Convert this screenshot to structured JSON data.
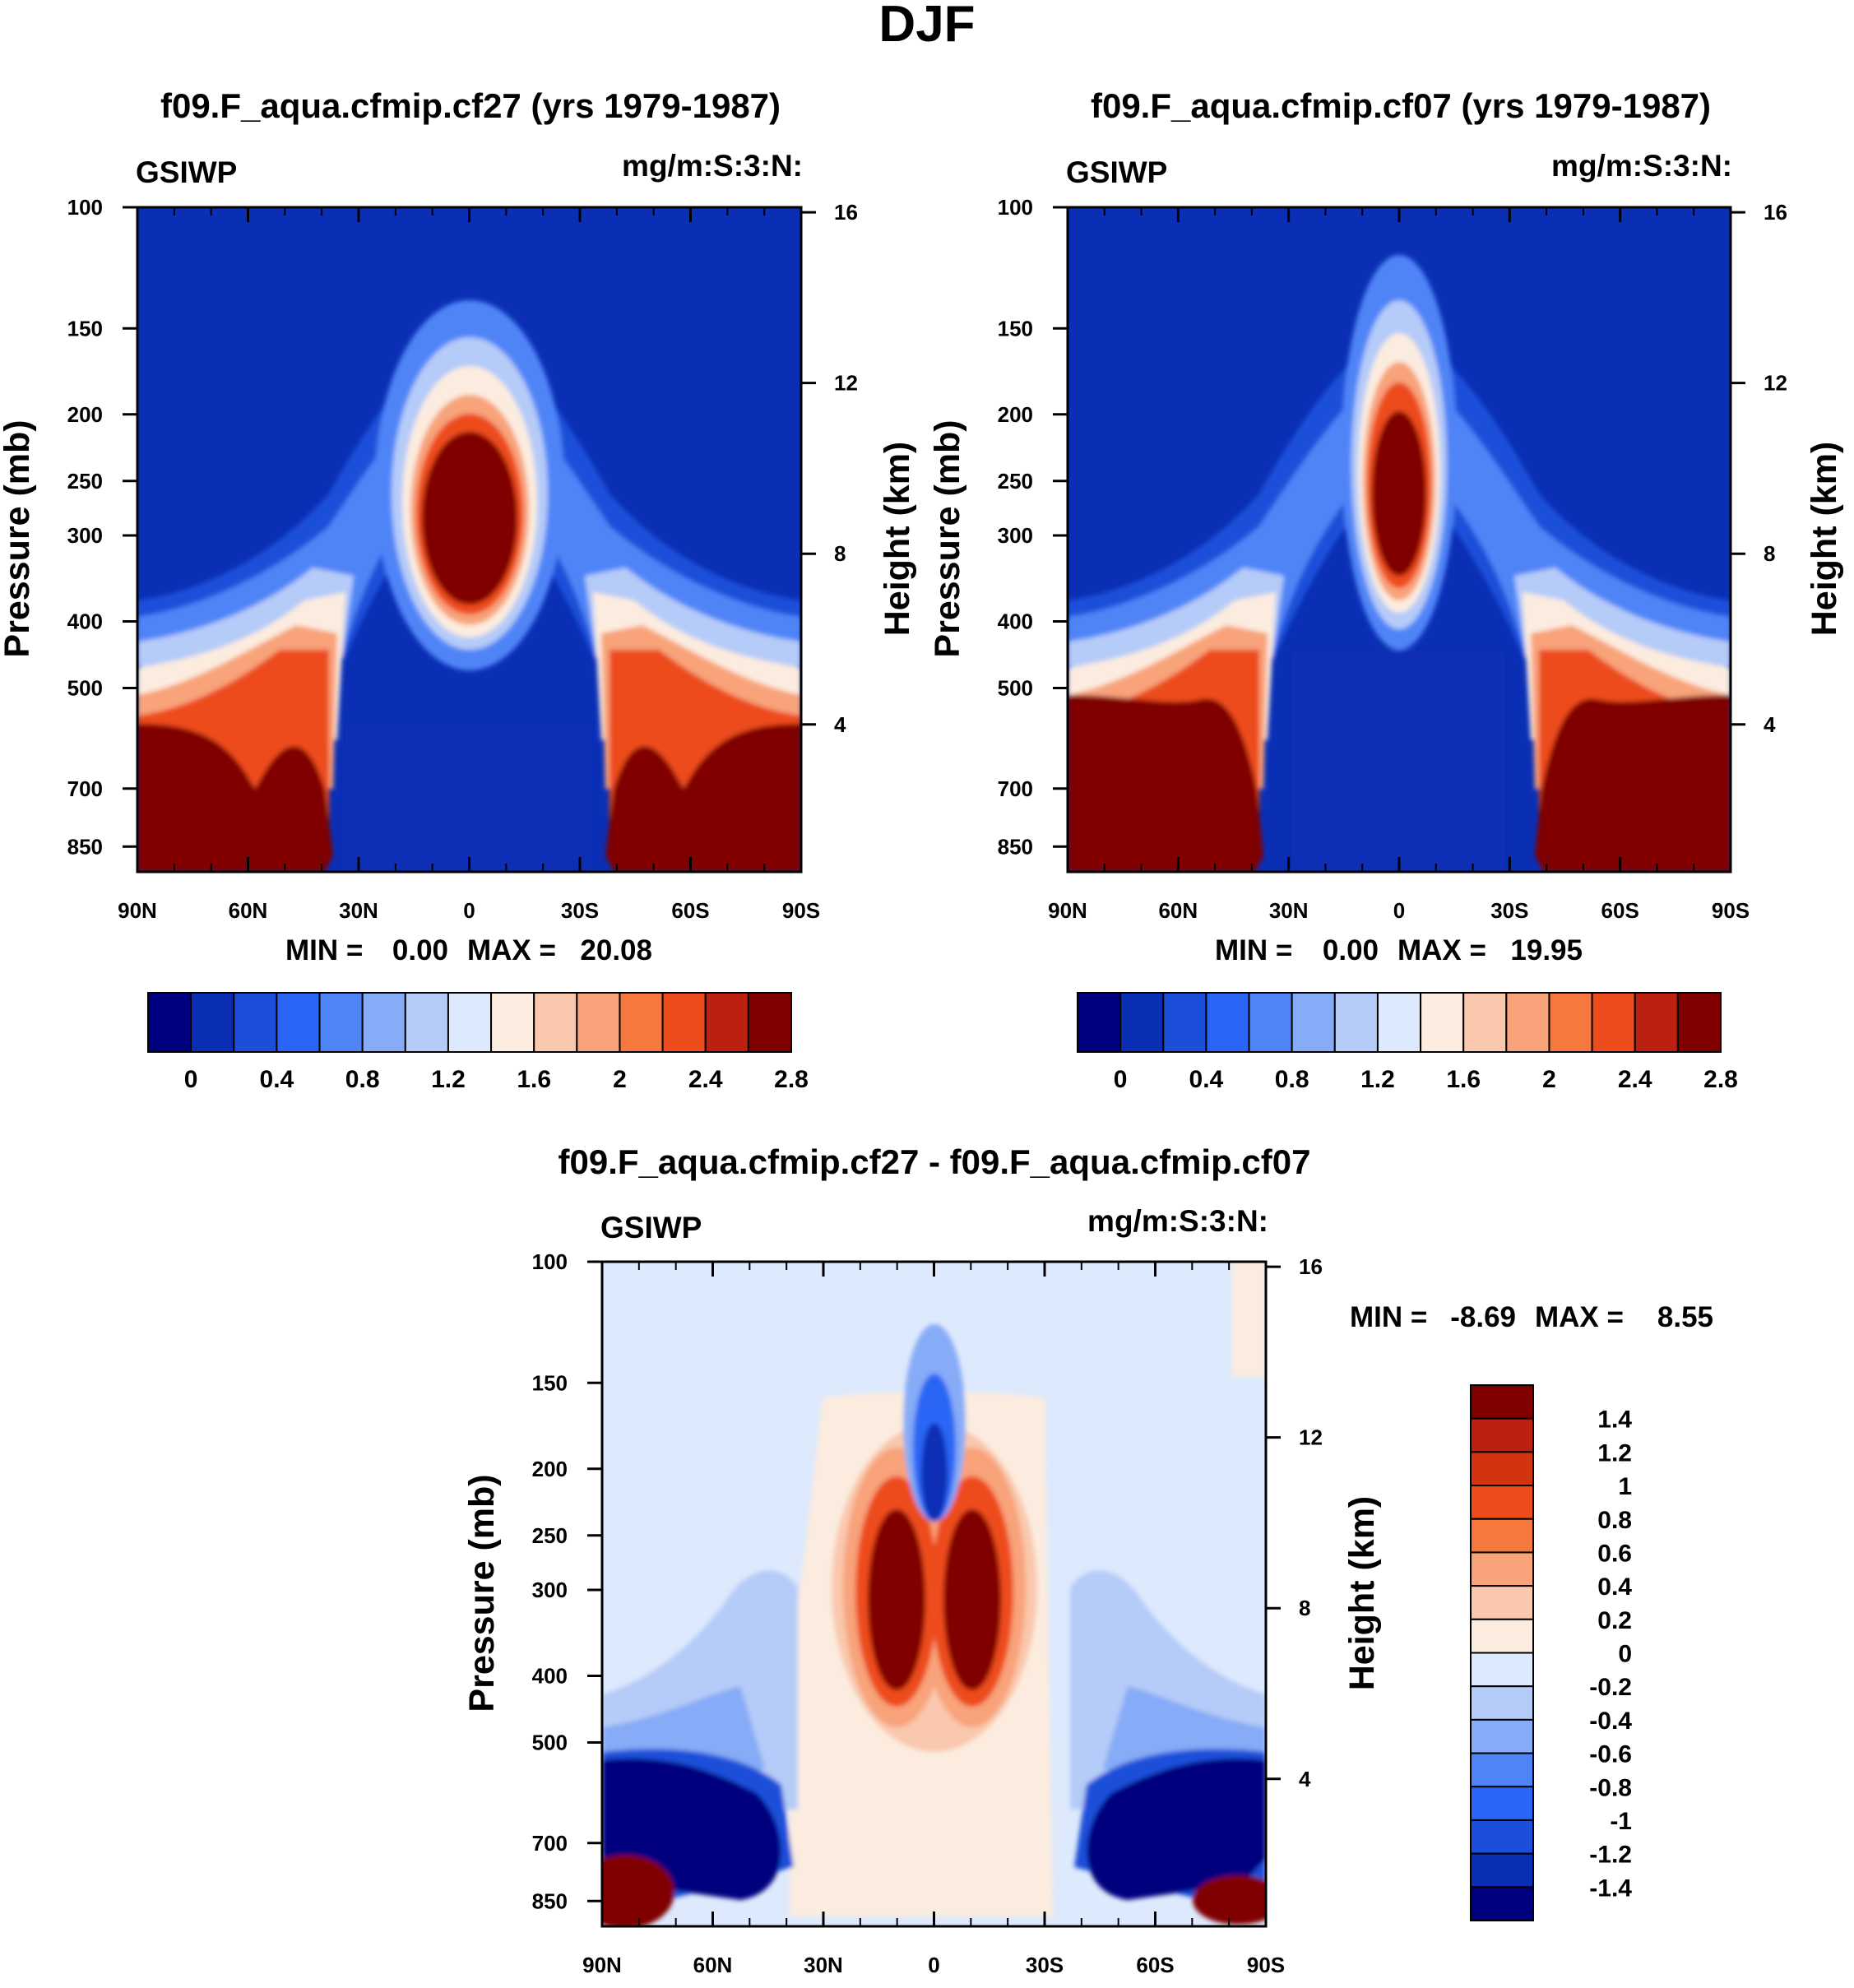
{
  "figure": {
    "title": "DJF"
  },
  "colors": {
    "levels15": [
      "#00007f",
      "#0a2fb5",
      "#1b4fd9",
      "#2a66f5",
      "#4f84f7",
      "#86abf7",
      "#b5cbf8",
      "#dde9fc",
      "#fcecdf",
      "#f9c8ad",
      "#f8a37a",
      "#f5783f",
      "#ed4c1c",
      "#bb2010",
      "#800000"
    ],
    "levels16": [
      "#00007f",
      "#0a2fb5",
      "#1b4fd9",
      "#2a66f5",
      "#4f84f7",
      "#86abf7",
      "#b5cbf8",
      "#dde9fc",
      "#fcecdf",
      "#f9c8ad",
      "#f8a37a",
      "#f5783f",
      "#ed4c1c",
      "#d2340f",
      "#bb2010",
      "#800000"
    ]
  },
  "chart_data": [
    {
      "type": "heatmap",
      "title": "f09.F_aqua.cfmip.cf27 (yrs 1979-1987)",
      "variable": "GSIWP",
      "units": "mg/m:S:3:N:",
      "xlabel": "",
      "ylabel": "Pressure (mb)",
      "y2label": "Height (km)",
      "x_ticks": [
        "90N",
        "60N",
        "30N",
        "0",
        "30S",
        "60S",
        "90S"
      ],
      "y_ticks": [
        100,
        150,
        200,
        250,
        300,
        400,
        500,
        700,
        850
      ],
      "y2_ticks": [
        16,
        12,
        8,
        4
      ],
      "ylim": [
        100,
        925
      ],
      "min_label": "MIN =",
      "min_value": "0.00",
      "max_label": "MAX =",
      "max_value": "20.08",
      "colorbar": {
        "orientation": "horizontal",
        "levels": [
          0,
          0.2,
          0.4,
          0.6,
          0.8,
          1,
          1.2,
          1.4,
          1.6,
          1.8,
          2,
          2.2,
          2.4,
          2.6,
          2.8
        ],
        "labels": [
          "0",
          "0.4",
          "0.8",
          "1.2",
          "1.6",
          "2",
          "2.4",
          "2.8"
        ]
      },
      "features": [
        {
          "name": "tropical-maximum",
          "lat_center": 0,
          "pressure_range": [
            200,
            420
          ],
          "max_value": 20.08
        },
        {
          "name": "midlatitude-low-level-maximum-north",
          "lat_range": [
            "90N",
            "45N"
          ],
          "pressure_range": [
            500,
            925
          ]
        },
        {
          "name": "midlatitude-low-level-maximum-south",
          "lat_range": [
            "45S",
            "90S"
          ],
          "pressure_range": [
            500,
            925
          ]
        }
      ]
    },
    {
      "type": "heatmap",
      "title": "f09.F_aqua.cfmip.cf07 (yrs 1979-1987)",
      "variable": "GSIWP",
      "units": "mg/m:S:3:N:",
      "xlabel": "",
      "ylabel": "Pressure (mb)",
      "y2label": "Height (km)",
      "x_ticks": [
        "90N",
        "60N",
        "30N",
        "0",
        "30S",
        "60S",
        "90S"
      ],
      "y_ticks": [
        100,
        150,
        200,
        250,
        300,
        400,
        500,
        700,
        850
      ],
      "y2_ticks": [
        16,
        12,
        8,
        4
      ],
      "ylim": [
        100,
        925
      ],
      "min_label": "MIN =",
      "min_value": "0.00",
      "max_label": "MAX =",
      "max_value": "19.95",
      "colorbar": {
        "orientation": "horizontal",
        "levels": [
          0,
          0.2,
          0.4,
          0.6,
          0.8,
          1,
          1.2,
          1.4,
          1.6,
          1.8,
          2,
          2.2,
          2.4,
          2.6,
          2.8
        ],
        "labels": [
          "0",
          "0.4",
          "0.8",
          "1.2",
          "1.6",
          "2",
          "2.4",
          "2.8"
        ]
      },
      "features": [
        {
          "name": "tropical-maximum",
          "lat_center": 0,
          "pressure_range": [
            180,
            430
          ],
          "max_value": 19.95
        },
        {
          "name": "midlatitude-low-level-maximum-north",
          "lat_range": [
            "90N",
            "45N"
          ],
          "pressure_range": [
            500,
            925
          ]
        },
        {
          "name": "midlatitude-low-level-maximum-south",
          "lat_range": [
            "45S",
            "90S"
          ],
          "pressure_range": [
            500,
            925
          ]
        }
      ]
    },
    {
      "type": "heatmap",
      "title": "f09.F_aqua.cfmip.cf27 - f09.F_aqua.cfmip.cf07",
      "variable": "GSIWP",
      "units": "mg/m:S:3:N:",
      "xlabel": "",
      "ylabel": "Pressure (mb)",
      "y2label": "Height (km)",
      "x_ticks": [
        "90N",
        "60N",
        "30N",
        "0",
        "30S",
        "60S",
        "90S"
      ],
      "y_ticks": [
        100,
        150,
        200,
        250,
        300,
        400,
        500,
        700,
        850
      ],
      "y2_ticks": [
        16,
        12,
        8,
        4
      ],
      "ylim": [
        100,
        925
      ],
      "min_label": "MIN =",
      "min_value": "-8.69",
      "max_label": "MAX =",
      "max_value": "8.55",
      "colorbar": {
        "orientation": "vertical",
        "levels": [
          -1.4,
          -1.2,
          -1,
          -0.8,
          -0.6,
          -0.4,
          -0.2,
          0,
          0.2,
          0.4,
          0.6,
          0.8,
          1,
          1.2,
          1.4
        ],
        "labels": [
          "1.4",
          "1.2",
          "1",
          "0.8",
          "0.6",
          "0.4",
          "0.2",
          "0",
          "-0.2",
          "-0.4",
          "-0.6",
          "-0.8",
          "-1",
          "-1.2",
          "-1.4"
        ]
      },
      "features": [
        {
          "name": "positive-lobe-north",
          "lat_center": "10N",
          "pressure_range": [
            250,
            560
          ]
        },
        {
          "name": "positive-lobe-south",
          "lat_center": "10S",
          "pressure_range": [
            250,
            560
          ]
        },
        {
          "name": "negative-tropical-upper",
          "lat_center": 0,
          "pressure_range": [
            125,
            270
          ]
        },
        {
          "name": "negative-midlatitude-north",
          "lat_range": [
            "90N",
            "40N"
          ],
          "pressure_range": [
            500,
            880
          ]
        },
        {
          "name": "negative-midlatitude-south",
          "lat_range": [
            "40S",
            "90S"
          ],
          "pressure_range": [
            500,
            880
          ]
        },
        {
          "name": "positive-polar-surface-north",
          "lat_range": [
            "90N",
            "70N"
          ],
          "pressure_range": [
            800,
            925
          ]
        },
        {
          "name": "positive-polar-surface-south",
          "lat_range": [
            "70S",
            "90S"
          ],
          "pressure_range": [
            800,
            925
          ]
        }
      ]
    }
  ]
}
